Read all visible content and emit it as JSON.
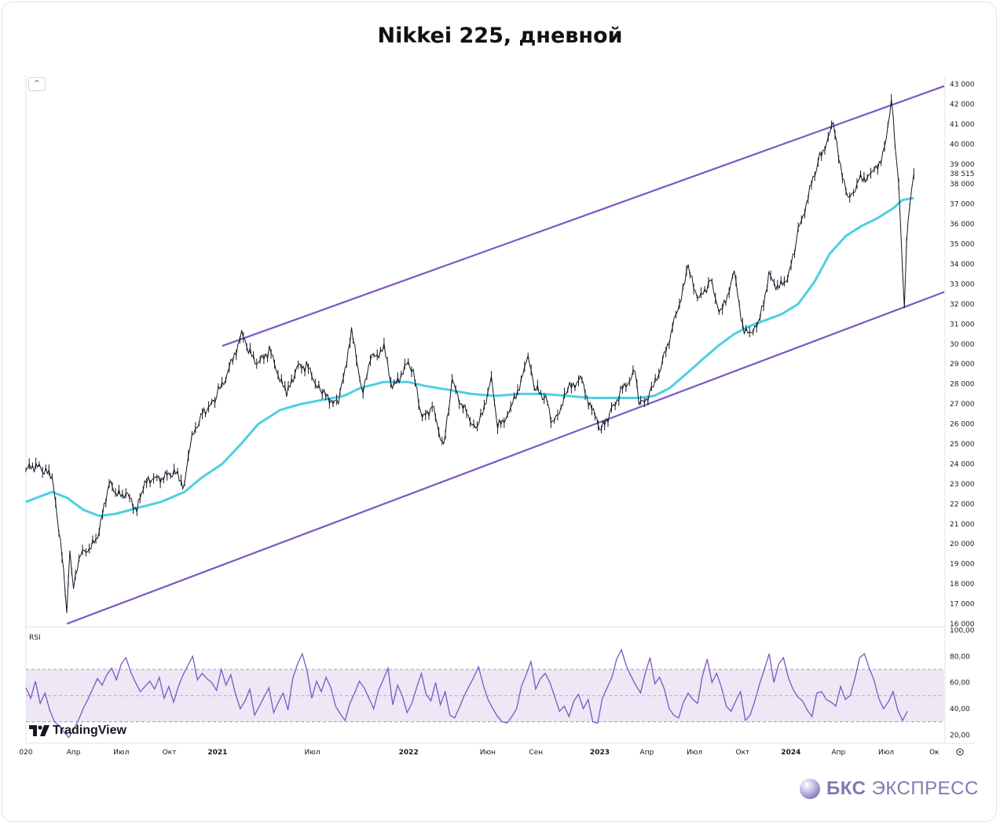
{
  "title": "Nikkei 225, дневной",
  "brand": {
    "name_bold": "БКС",
    "name_rest": " ЭКСПРЕСС"
  },
  "tradingview": {
    "label": "TradingView"
  },
  "collapse_glyph": "^",
  "settings_icon": "gear-icon",
  "colors": {
    "price": "#131722",
    "ma": "#4dd0e1",
    "channel": "#7e57c2",
    "rsi_line": "#7e57c2",
    "rsi_band": "#ede7f6",
    "brand": "#7d7bb3"
  },
  "chart_data": [
    {
      "type": "line",
      "name": "price",
      "ylim": [
        16000,
        43000
      ],
      "y_ticks": [
        "43 000",
        "42 000",
        "41 000",
        "40 000",
        "39 000",
        "38 000",
        "37 000",
        "36 000",
        "35 000",
        "34 000",
        "33 000",
        "32 000",
        "31 000",
        "30 000",
        "29 000",
        "28 000",
        "27 000",
        "26 000",
        "25 000",
        "24 000",
        "23 000",
        "22 000",
        "21 000",
        "20 000",
        "19 000",
        "18 000",
        "17 000",
        "16 000"
      ],
      "last_value_label": "38 515",
      "x_ticks": [
        "020",
        "Апр",
        "Июл",
        "Окт",
        "2021",
        "Июл",
        "2022",
        "Июн",
        "Сен",
        "2023",
        "Апр",
        "Июл",
        "Окт",
        "2024",
        "Апр",
        "Июл",
        "Ок"
      ],
      "x_ticks_bold": [
        "2021",
        "2022",
        "2023",
        "2024"
      ],
      "x_dates": [
        "2020-01-01",
        "2020-04-01",
        "2020-07-01",
        "2020-10-01",
        "2021-01-01",
        "2021-07-01",
        "2022-01-01",
        "2022-06-01",
        "2022-09-01",
        "2023-01-01",
        "2023-04-01",
        "2023-07-01",
        "2023-10-01",
        "2024-01-01",
        "2024-04-01",
        "2024-07-01",
        "2024-10-01"
      ],
      "series": [
        {
          "name": "Nikkei 225",
          "points": [
            [
              "2020-01-01",
              23700
            ],
            [
              "2020-01-20",
              23900
            ],
            [
              "2020-02-05",
              23600
            ],
            [
              "2020-02-20",
              23400
            ],
            [
              "2020-03-01",
              21100
            ],
            [
              "2020-03-10",
              19400
            ],
            [
              "2020-03-19",
              16600
            ],
            [
              "2020-03-25",
              19500
            ],
            [
              "2020-04-01",
              17800
            ],
            [
              "2020-04-15",
              19500
            ],
            [
              "2020-05-01",
              19600
            ],
            [
              "2020-05-20",
              20600
            ],
            [
              "2020-06-08",
              23100
            ],
            [
              "2020-06-20",
              22400
            ],
            [
              "2020-07-10",
              22500
            ],
            [
              "2020-07-31",
              21700
            ],
            [
              "2020-08-15",
              23000
            ],
            [
              "2020-09-01",
              23200
            ],
            [
              "2020-09-20",
              23300
            ],
            [
              "2020-10-10",
              23600
            ],
            [
              "2020-10-30",
              22900
            ],
            [
              "2020-11-10",
              25000
            ],
            [
              "2020-11-30",
              26400
            ],
            [
              "2020-12-15",
              26700
            ],
            [
              "2020-12-30",
              27400
            ],
            [
              "2021-01-20",
              28500
            ],
            [
              "2021-02-16",
              30500
            ],
            [
              "2021-03-01",
              29600
            ],
            [
              "2021-03-20",
              29000
            ],
            [
              "2021-04-10",
              29700
            ],
            [
              "2021-05-13",
              27400
            ],
            [
              "2021-06-01",
              28800
            ],
            [
              "2021-06-20",
              28900
            ],
            [
              "2021-07-20",
              27500
            ],
            [
              "2021-08-20",
              27000
            ],
            [
              "2021-09-14",
              30600
            ],
            [
              "2021-10-06",
              27500
            ],
            [
              "2021-10-20",
              29200
            ],
            [
              "2021-11-15",
              29800
            ],
            [
              "2021-12-01",
              27700
            ],
            [
              "2021-12-28",
              29000
            ],
            [
              "2022-01-10",
              28500
            ],
            [
              "2022-01-27",
              26200
            ],
            [
              "2022-02-15",
              26900
            ],
            [
              "2022-03-09",
              24800
            ],
            [
              "2022-03-25",
              28100
            ],
            [
              "2022-04-15",
              26800
            ],
            [
              "2022-05-12",
              25700
            ],
            [
              "2022-06-08",
              28200
            ],
            [
              "2022-06-20",
              25800
            ],
            [
              "2022-07-15",
              26700
            ],
            [
              "2022-08-17",
              29200
            ],
            [
              "2022-09-01",
              27700
            ],
            [
              "2022-09-20",
              27300
            ],
            [
              "2022-10-03",
              25900
            ],
            [
              "2022-11-01",
              27700
            ],
            [
              "2022-11-25",
              28300
            ],
            [
              "2022-12-20",
              26500
            ],
            [
              "2023-01-04",
              25700
            ],
            [
              "2023-01-20",
              26500
            ],
            [
              "2023-02-10",
              27600
            ],
            [
              "2023-03-09",
              28600
            ],
            [
              "2023-03-17",
              26900
            ],
            [
              "2023-04-10",
              27600
            ],
            [
              "2023-05-01",
              29100
            ],
            [
              "2023-05-20",
              30800
            ],
            [
              "2023-06-19",
              33700
            ],
            [
              "2023-07-10",
              32200
            ],
            [
              "2023-07-31",
              33200
            ],
            [
              "2023-08-20",
              31500
            ],
            [
              "2023-09-15",
              33500
            ],
            [
              "2023-10-04",
              30500
            ],
            [
              "2023-10-31",
              30900
            ],
            [
              "2023-11-20",
              33400
            ],
            [
              "2023-12-10",
              32800
            ],
            [
              "2023-12-29",
              33500
            ],
            [
              "2024-01-15",
              35600
            ],
            [
              "2024-02-22",
              39100
            ],
            [
              "2024-03-22",
              40900
            ],
            [
              "2024-04-19",
              37100
            ],
            [
              "2024-05-10",
              38200
            ],
            [
              "2024-06-05",
              38500
            ],
            [
              "2024-06-28",
              39600
            ],
            [
              "2024-07-11",
              42200
            ],
            [
              "2024-07-25",
              37900
            ],
            [
              "2024-08-05",
              31500
            ],
            [
              "2024-08-09",
              35000
            ],
            [
              "2024-08-15",
              36800
            ],
            [
              "2024-08-23",
              38515
            ]
          ]
        },
        {
          "name": "MA",
          "points": [
            [
              "2020-01-01",
              22100
            ],
            [
              "2020-02-20",
              22600
            ],
            [
              "2020-03-20",
              22300
            ],
            [
              "2020-04-20",
              21700
            ],
            [
              "2020-05-20",
              21400
            ],
            [
              "2020-06-20",
              21500
            ],
            [
              "2020-08-01",
              21800
            ],
            [
              "2020-09-15",
              22100
            ],
            [
              "2020-10-30",
              22600
            ],
            [
              "2020-12-01",
              23300
            ],
            [
              "2021-01-10",
              24000
            ],
            [
              "2021-02-15",
              25000
            ],
            [
              "2021-03-20",
              26000
            ],
            [
              "2021-05-01",
              26700
            ],
            [
              "2021-06-10",
              27000
            ],
            [
              "2021-07-20",
              27200
            ],
            [
              "2021-08-30",
              27400
            ],
            [
              "2021-10-01",
              27800
            ],
            [
              "2021-11-15",
              28100
            ],
            [
              "2021-12-31",
              28100
            ],
            [
              "2022-02-01",
              27900
            ],
            [
              "2022-03-20",
              27700
            ],
            [
              "2022-05-01",
              27500
            ],
            [
              "2022-06-15",
              27400
            ],
            [
              "2022-08-01",
              27500
            ],
            [
              "2022-09-15",
              27500
            ],
            [
              "2022-11-01",
              27400
            ],
            [
              "2022-12-15",
              27300
            ],
            [
              "2023-02-01",
              27300
            ],
            [
              "2023-03-15",
              27300
            ],
            [
              "2023-04-15",
              27400
            ],
            [
              "2023-05-15",
              27800
            ],
            [
              "2023-06-15",
              28500
            ],
            [
              "2023-07-15",
              29200
            ],
            [
              "2023-08-15",
              29900
            ],
            [
              "2023-09-15",
              30500
            ],
            [
              "2023-10-15",
              30900
            ],
            [
              "2023-11-15",
              31200
            ],
            [
              "2023-12-15",
              31500
            ],
            [
              "2024-01-15",
              32000
            ],
            [
              "2024-02-15",
              33100
            ],
            [
              "2024-03-15",
              34500
            ],
            [
              "2024-04-15",
              35400
            ],
            [
              "2024-05-15",
              35900
            ],
            [
              "2024-06-15",
              36300
            ],
            [
              "2024-07-15",
              36800
            ],
            [
              "2024-08-01",
              37200
            ],
            [
              "2024-08-23",
              37300
            ]
          ]
        },
        {
          "name": "upper-channel",
          "points": [
            [
              "2021-01-10",
              29900
            ],
            [
              "2024-10-20",
              42900
            ]
          ]
        },
        {
          "name": "lower-channel",
          "points": [
            [
              "2020-03-19",
              16000
            ],
            [
              "2024-10-20",
              32600
            ]
          ]
        }
      ]
    },
    {
      "type": "line",
      "name": "RSI",
      "title": "RSI",
      "ylim": [
        13,
        100
      ],
      "y_ticks": [
        "100,00",
        "80,00",
        "60,00",
        "40,00",
        "20,00"
      ],
      "band": [
        30,
        70
      ],
      "midline": 50,
      "series": [
        {
          "name": "RSI",
          "values": [
            56,
            48,
            61,
            44,
            52,
            39,
            30,
            27,
            22,
            18,
            24,
            31,
            40,
            47,
            55,
            63,
            58,
            66,
            71,
            62,
            74,
            79,
            68,
            60,
            53,
            57,
            61,
            55,
            64,
            48,
            57,
            45,
            57,
            66,
            73,
            80,
            62,
            67,
            63,
            60,
            54,
            70,
            58,
            66,
            51,
            40,
            46,
            55,
            35,
            42,
            49,
            56,
            37,
            45,
            52,
            39,
            63,
            74,
            82,
            69,
            48,
            61,
            53,
            64,
            56,
            42,
            36,
            31,
            44,
            52,
            61,
            56,
            48,
            40,
            54,
            62,
            71,
            43,
            58,
            50,
            37,
            44,
            56,
            67,
            51,
            46,
            60,
            43,
            53,
            35,
            33,
            41,
            50,
            57,
            64,
            72,
            58,
            47,
            40,
            34,
            30,
            29,
            34,
            40,
            57,
            66,
            76,
            55,
            63,
            67,
            60,
            49,
            38,
            42,
            34,
            46,
            51,
            40,
            47,
            30,
            29,
            48,
            56,
            64,
            78,
            85,
            73,
            65,
            58,
            52,
            67,
            79,
            59,
            64,
            55,
            40,
            35,
            33,
            45,
            52,
            47,
            44,
            65,
            78,
            60,
            67,
            56,
            42,
            38,
            46,
            53,
            31,
            35,
            46,
            59,
            70,
            82,
            60,
            74,
            79,
            64,
            55,
            49,
            46,
            39,
            34,
            52,
            53,
            47,
            45,
            42,
            57,
            47,
            50,
            63,
            79,
            82,
            71,
            62,
            48,
            40,
            45,
            53,
            39,
            31,
            38
          ]
        }
      ]
    }
  ]
}
